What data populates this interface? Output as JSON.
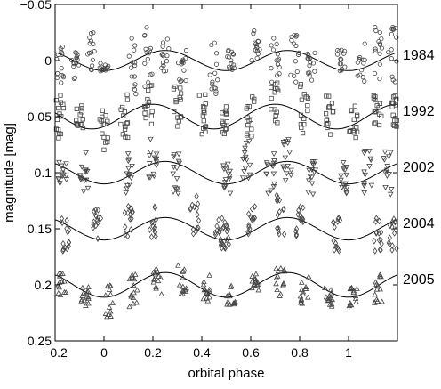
{
  "chart_data": {
    "type": "scatter",
    "xlabel": "orbital phase",
    "ylabel": "magnitude [mag]",
    "xlim": [
      -0.2,
      1.2
    ],
    "ylim": [
      0.25,
      -0.05
    ],
    "y_inverted": true,
    "x_ticks": [
      -0.2,
      0,
      0.2,
      0.4,
      0.6,
      0.8,
      1
    ],
    "x_tick_labels": [
      "−0.2",
      "0",
      "0.2",
      "0.4",
      "0.6",
      "0.8",
      "1"
    ],
    "y_ticks": [
      -0.05,
      0,
      0.05,
      0.1,
      0.15,
      0.2,
      0.25
    ],
    "y_tick_labels": [
      "−0.05",
      "0",
      "0.05",
      "0.1",
      "0.15",
      "0.2",
      "0.25"
    ],
    "grid": false,
    "curve_period": 0.5,
    "series": [
      {
        "name": "1984",
        "marker": "circle",
        "mean_mag": 0.0,
        "amplitude": 0.009,
        "phase_of_min_brightness": 0.0,
        "clusters": [
          {
            "x": -0.18,
            "y_range": [
              -0.02,
              0.02
            ]
          },
          {
            "x": -0.12,
            "y_range": [
              -0.01,
              0.02
            ]
          },
          {
            "x": -0.05,
            "y_range": [
              -0.025,
              0.01
            ]
          },
          {
            "x": 0.0,
            "y_range": [
              0.0,
              0.01
            ]
          },
          {
            "x": 0.12,
            "y_range": [
              -0.02,
              0.03
            ]
          },
          {
            "x": 0.18,
            "y_range": [
              -0.03,
              0.03
            ]
          },
          {
            "x": 0.25,
            "y_range": [
              -0.02,
              0.01
            ]
          },
          {
            "x": 0.32,
            "y_range": [
              -0.01,
              0.02
            ]
          },
          {
            "x": 0.45,
            "y_range": [
              -0.02,
              0.03
            ]
          },
          {
            "x": 0.52,
            "y_range": [
              -0.01,
              0.01
            ]
          },
          {
            "x": 0.62,
            "y_range": [
              -0.03,
              0.0
            ]
          },
          {
            "x": 0.7,
            "y_range": [
              -0.02,
              0.02
            ]
          },
          {
            "x": 0.78,
            "y_range": [
              -0.025,
              0.02
            ]
          },
          {
            "x": 0.85,
            "y_range": [
              -0.01,
              0.02
            ]
          },
          {
            "x": 0.97,
            "y_range": [
              -0.01,
              0.01
            ]
          },
          {
            "x": 1.05,
            "y_range": [
              -0.02,
              0.02
            ]
          },
          {
            "x": 1.12,
            "y_range": [
              -0.03,
              0.02
            ]
          },
          {
            "x": 1.18,
            "y_range": [
              -0.03,
              0.03
            ]
          }
        ]
      },
      {
        "name": "1992",
        "marker": "square",
        "mean_mag": 0.05,
        "amplitude": 0.011,
        "phase_of_min_brightness": -0.05,
        "clusters": [
          {
            "x": -0.18,
            "y_range": [
              0.03,
              0.07
            ]
          },
          {
            "x": -0.1,
            "y_range": [
              0.04,
              0.06
            ]
          },
          {
            "x": 0.0,
            "y_range": [
              0.04,
              0.08
            ]
          },
          {
            "x": 0.08,
            "y_range": [
              0.03,
              0.07
            ]
          },
          {
            "x": 0.18,
            "y_range": [
              0.02,
              0.06
            ]
          },
          {
            "x": 0.3,
            "y_range": [
              0.02,
              0.06
            ]
          },
          {
            "x": 0.4,
            "y_range": [
              0.03,
              0.07
            ]
          },
          {
            "x": 0.5,
            "y_range": [
              0.04,
              0.07
            ]
          },
          {
            "x": 0.6,
            "y_range": [
              0.03,
              0.07
            ]
          },
          {
            "x": 0.7,
            "y_range": [
              0.02,
              0.06
            ]
          },
          {
            "x": 0.82,
            "y_range": [
              0.02,
              0.07
            ]
          },
          {
            "x": 0.92,
            "y_range": [
              0.03,
              0.07
            ]
          },
          {
            "x": 1.02,
            "y_range": [
              0.04,
              0.07
            ]
          },
          {
            "x": 1.12,
            "y_range": [
              0.03,
              0.06
            ]
          },
          {
            "x": 1.18,
            "y_range": [
              0.03,
              0.06
            ]
          }
        ]
      },
      {
        "name": "2002",
        "marker": "triangle-down",
        "mean_mag": 0.1,
        "amplitude": 0.01,
        "phase_of_min_brightness": 0.0,
        "clusters": [
          {
            "x": -0.17,
            "y_range": [
              0.09,
              0.11
            ]
          },
          {
            "x": -0.08,
            "y_range": [
              0.08,
              0.12
            ]
          },
          {
            "x": 0.1,
            "y_range": [
              0.08,
              0.12
            ]
          },
          {
            "x": 0.2,
            "y_range": [
              0.07,
              0.11
            ]
          },
          {
            "x": 0.3,
            "y_range": [
              0.08,
              0.12
            ]
          },
          {
            "x": 0.5,
            "y_range": [
              0.09,
              0.12
            ]
          },
          {
            "x": 0.58,
            "y_range": [
              0.07,
              0.11
            ]
          },
          {
            "x": 0.68,
            "y_range": [
              0.08,
              0.12
            ]
          },
          {
            "x": 0.75,
            "y_range": [
              0.07,
              0.11
            ]
          },
          {
            "x": 0.85,
            "y_range": [
              0.09,
              0.12
            ]
          },
          {
            "x": 0.98,
            "y_range": [
              0.09,
              0.12
            ]
          },
          {
            "x": 1.08,
            "y_range": [
              0.08,
              0.12
            ]
          },
          {
            "x": 1.16,
            "y_range": [
              0.08,
              0.12
            ]
          }
        ]
      },
      {
        "name": "2004",
        "marker": "diamond",
        "mean_mag": 0.15,
        "amplitude": 0.01,
        "phase_of_min_brightness": 0.0,
        "clusters": [
          {
            "x": -0.16,
            "y_range": [
              0.14,
              0.17
            ]
          },
          {
            "x": -0.03,
            "y_range": [
              0.13,
              0.16
            ]
          },
          {
            "x": 0.1,
            "y_range": [
              0.13,
              0.16
            ]
          },
          {
            "x": 0.2,
            "y_range": [
              0.13,
              0.16
            ]
          },
          {
            "x": 0.37,
            "y_range": [
              0.12,
              0.16
            ]
          },
          {
            "x": 0.47,
            "y_range": [
              0.14,
              0.17
            ]
          },
          {
            "x": 0.5,
            "y_range": [
              0.14,
              0.17
            ]
          },
          {
            "x": 0.6,
            "y_range": [
              0.13,
              0.16
            ]
          },
          {
            "x": 0.72,
            "y_range": [
              0.12,
              0.16
            ]
          },
          {
            "x": 0.8,
            "y_range": [
              0.13,
              0.16
            ]
          },
          {
            "x": 0.95,
            "y_range": [
              0.14,
              0.17
            ]
          },
          {
            "x": 1.12,
            "y_range": [
              0.14,
              0.17
            ]
          },
          {
            "x": 1.18,
            "y_range": [
              0.14,
              0.17
            ]
          }
        ]
      },
      {
        "name": "2005",
        "marker": "triangle-up",
        "mean_mag": 0.2,
        "amplitude": 0.011,
        "phase_of_min_brightness": 0.0,
        "clusters": [
          {
            "x": -0.17,
            "y_range": [
              0.19,
              0.21
            ]
          },
          {
            "x": -0.08,
            "y_range": [
              0.2,
              0.22
            ]
          },
          {
            "x": 0.02,
            "y_range": [
              0.2,
              0.23
            ]
          },
          {
            "x": 0.12,
            "y_range": [
              0.19,
              0.22
            ]
          },
          {
            "x": 0.22,
            "y_range": [
              0.18,
              0.21
            ]
          },
          {
            "x": 0.32,
            "y_range": [
              0.18,
              0.21
            ]
          },
          {
            "x": 0.42,
            "y_range": [
              0.19,
              0.22
            ]
          },
          {
            "x": 0.52,
            "y_range": [
              0.2,
              0.22
            ]
          },
          {
            "x": 0.62,
            "y_range": [
              0.19,
              0.21
            ]
          },
          {
            "x": 0.72,
            "y_range": [
              0.18,
              0.21
            ]
          },
          {
            "x": 0.82,
            "y_range": [
              0.19,
              0.22
            ]
          },
          {
            "x": 0.92,
            "y_range": [
              0.2,
              0.22
            ]
          },
          {
            "x": 1.02,
            "y_range": [
              0.2,
              0.23
            ]
          },
          {
            "x": 1.12,
            "y_range": [
              0.19,
              0.22
            ]
          }
        ]
      }
    ]
  }
}
